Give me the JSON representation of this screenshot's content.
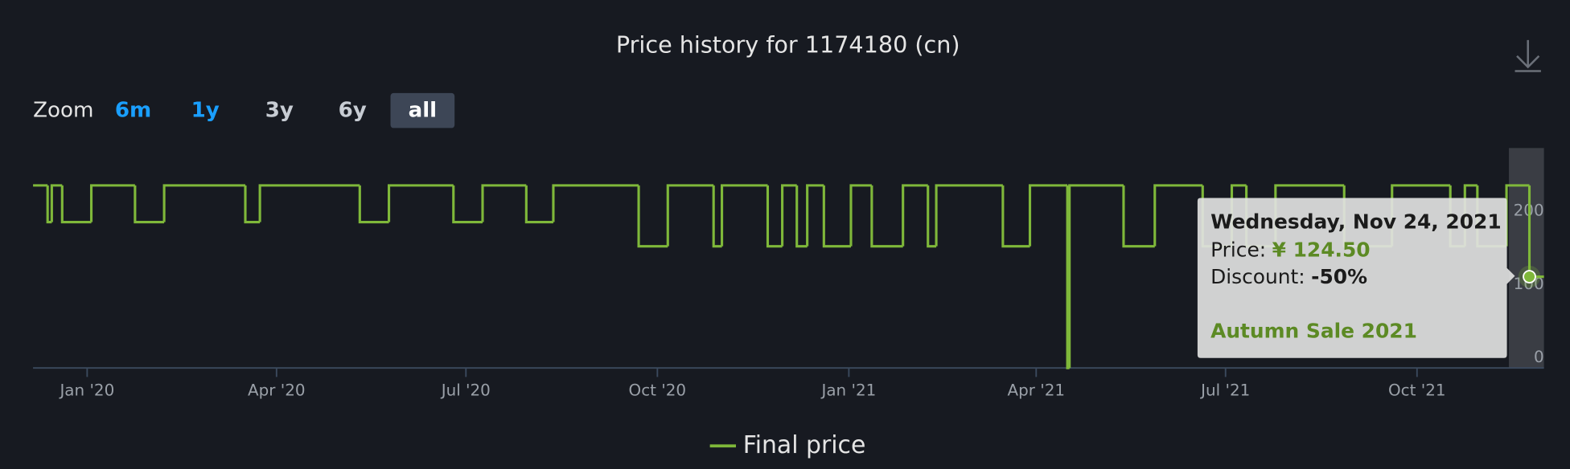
{
  "chart_data": {
    "type": "line",
    "step": true,
    "title": "Price history for 1174180 (cn)",
    "zoom": {
      "label": "Zoom",
      "buttons": [
        "6m",
        "1y",
        "3y",
        "6y",
        "all"
      ],
      "selected": 4
    },
    "xlim": [
      "2019-12-06",
      "2021-12-01"
    ],
    "xticks": [
      {
        "value": "2020-01-01",
        "label": "Jan '20"
      },
      {
        "value": "2020-04-01",
        "label": "Apr '20"
      },
      {
        "value": "2020-07-01",
        "label": "Jul '20"
      },
      {
        "value": "2020-10-01",
        "label": "Oct '20"
      },
      {
        "value": "2021-01-01",
        "label": "Jan '21"
      },
      {
        "value": "2021-04-01",
        "label": "Apr '21"
      },
      {
        "value": "2021-07-01",
        "label": "Jul '21"
      },
      {
        "value": "2021-10-01",
        "label": "Oct '21"
      }
    ],
    "ylim": [
      0,
      300
    ],
    "yticks": [
      0,
      100,
      200
    ],
    "grid": false,
    "x": [
      "2019-12-06",
      "2019-12-13",
      "2019-12-15",
      "2019-12-20",
      "2020-01-03",
      "2020-01-24",
      "2020-02-07",
      "2020-03-17",
      "2020-03-24",
      "2020-05-11",
      "2020-05-25",
      "2020-06-25",
      "2020-07-09",
      "2020-07-30",
      "2020-08-12",
      "2020-09-22",
      "2020-10-06",
      "2020-10-28",
      "2020-11-01",
      "2020-11-23",
      "2020-11-30",
      "2020-12-07",
      "2020-12-12",
      "2020-12-20",
      "2021-01-02",
      "2021-01-12",
      "2021-01-27",
      "2021-02-08",
      "2021-02-12",
      "2021-03-16",
      "2021-03-29",
      "2021-04-16",
      "2021-04-17",
      "2021-05-13",
      "2021-05-28",
      "2021-06-20",
      "2021-07-04",
      "2021-07-11",
      "2021-07-25",
      "2021-08-27",
      "2021-09-19",
      "2021-10-17",
      "2021-10-24",
      "2021-10-30",
      "2021-11-13",
      "2021-11-24"
    ],
    "series": [
      {
        "name": "Final price",
        "color": "#7fb83a",
        "values": [
          249,
          199,
          249,
          199,
          249,
          199,
          249,
          199,
          249,
          199,
          249,
          199,
          249,
          199,
          249,
          166,
          249,
          166,
          249,
          166,
          249,
          166,
          249,
          166,
          249,
          166,
          249,
          166,
          249,
          166,
          249,
          0,
          249,
          166,
          249,
          166,
          249,
          166,
          249,
          166,
          249,
          166,
          249,
          166,
          249,
          124.5
        ]
      }
    ],
    "legend": "bottom",
    "tooltip": {
      "title": "Wednesday, Nov 24, 2021",
      "price_label": "Price:",
      "price": "¥ 124.50",
      "discount_label": "Discount:",
      "discount": "-50%",
      "event": "Autumn Sale 2021"
    }
  }
}
